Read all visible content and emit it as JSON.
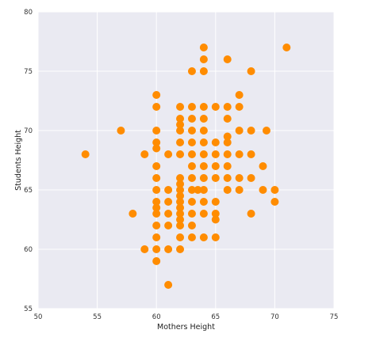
{
  "chart_data": {
    "type": "scatter",
    "title": "",
    "xlabel": "Mothers Height",
    "ylabel": "Students Height",
    "xlim": [
      50,
      75
    ],
    "ylim": [
      55,
      80
    ],
    "xticks": [
      "50",
      "55",
      "60",
      "65",
      "70",
      "75"
    ],
    "yticks": [
      "55",
      "60",
      "65",
      "70",
      "75",
      "80"
    ],
    "grid": true,
    "legend": "none",
    "colors": {
      "point": "#ff8c00",
      "background": "#eaeaf2",
      "grid": "#ffffff"
    },
    "series": [
      {
        "points": [
          [
            54,
            68
          ],
          [
            57,
            70
          ],
          [
            58,
            63
          ],
          [
            59,
            60
          ],
          [
            59,
            68
          ],
          [
            60,
            59
          ],
          [
            60,
            60
          ],
          [
            60,
            61
          ],
          [
            60,
            62
          ],
          [
            60,
            63
          ],
          [
            60,
            63.5
          ],
          [
            60,
            64
          ],
          [
            60,
            65
          ],
          [
            60,
            66
          ],
          [
            60,
            67
          ],
          [
            60,
            68.5
          ],
          [
            60,
            69
          ],
          [
            60,
            70
          ],
          [
            60,
            72
          ],
          [
            60,
            73
          ],
          [
            61,
            57
          ],
          [
            61,
            60
          ],
          [
            61,
            62
          ],
          [
            61,
            63
          ],
          [
            61,
            64
          ],
          [
            61,
            65
          ],
          [
            61,
            68
          ],
          [
            62,
            60
          ],
          [
            62,
            61
          ],
          [
            62,
            62
          ],
          [
            62,
            62.5
          ],
          [
            62,
            63
          ],
          [
            62,
            63.5
          ],
          [
            62,
            64
          ],
          [
            62,
            64.5
          ],
          [
            62,
            65
          ],
          [
            62,
            65.5
          ],
          [
            62,
            66
          ],
          [
            62,
            68
          ],
          [
            62,
            69
          ],
          [
            62,
            70
          ],
          [
            62,
            70.5
          ],
          [
            62,
            71
          ],
          [
            62,
            72
          ],
          [
            63,
            61
          ],
          [
            63,
            62
          ],
          [
            63,
            63
          ],
          [
            63,
            64
          ],
          [
            63,
            65
          ],
          [
            63,
            66
          ],
          [
            63,
            67
          ],
          [
            63,
            68
          ],
          [
            63,
            69
          ],
          [
            63,
            70
          ],
          [
            63,
            71
          ],
          [
            63,
            72
          ],
          [
            63,
            75
          ],
          [
            63.5,
            65
          ],
          [
            64,
            61
          ],
          [
            64,
            63
          ],
          [
            64,
            64
          ],
          [
            64,
            65
          ],
          [
            64,
            66
          ],
          [
            64,
            67
          ],
          [
            64,
            68
          ],
          [
            64,
            69
          ],
          [
            64,
            70
          ],
          [
            64,
            71
          ],
          [
            64,
            72
          ],
          [
            64,
            75
          ],
          [
            64,
            76
          ],
          [
            64,
            77
          ],
          [
            65,
            61
          ],
          [
            65,
            62.5
          ],
          [
            65,
            63
          ],
          [
            65,
            64
          ],
          [
            65,
            66
          ],
          [
            65,
            67
          ],
          [
            65,
            68
          ],
          [
            65,
            69
          ],
          [
            65,
            72
          ],
          [
            66,
            65
          ],
          [
            66,
            66
          ],
          [
            66,
            67
          ],
          [
            66,
            68
          ],
          [
            66,
            69
          ],
          [
            66,
            69.5
          ],
          [
            66,
            71
          ],
          [
            66,
            72
          ],
          [
            66,
            76
          ],
          [
            67,
            65
          ],
          [
            67,
            66
          ],
          [
            67,
            68
          ],
          [
            67,
            70
          ],
          [
            67,
            72
          ],
          [
            67,
            73
          ],
          [
            68,
            63
          ],
          [
            68,
            66
          ],
          [
            68,
            68
          ],
          [
            68,
            70
          ],
          [
            68,
            75
          ],
          [
            69,
            65
          ],
          [
            69,
            67
          ],
          [
            69.3,
            70
          ],
          [
            70,
            64
          ],
          [
            70,
            65
          ],
          [
            71,
            77
          ]
        ]
      }
    ]
  }
}
